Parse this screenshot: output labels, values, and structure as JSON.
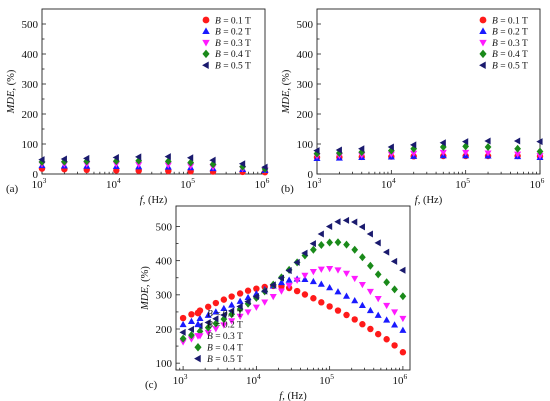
{
  "chart_data": [
    {
      "type": "scatter",
      "panel_label": "(a)",
      "xlabel_italic": "f",
      "xlabel_rest": ", (Hz)",
      "ylabel_italic": "MDE",
      "ylabel_rest": ", (%)",
      "xscale": "log",
      "xlim": [
        1000,
        1000000
      ],
      "ylim": [
        0,
        550
      ],
      "xticks": [
        {
          "base": "10",
          "exp": "3",
          "value": 1000
        },
        {
          "base": "10",
          "exp": "4",
          "value": 10000
        },
        {
          "base": "10",
          "exp": "5",
          "value": 100000
        },
        {
          "base": "10",
          "exp": "6",
          "value": 1000000
        }
      ],
      "yticks": [
        0,
        100,
        200,
        300,
        400,
        500
      ],
      "legend_position": "top-right",
      "series": [
        {
          "name_italic": "B",
          "name_rest": " = 0.1 T",
          "color": "#ff1a1a",
          "marker": "circle",
          "x": [
            1000,
            2000,
            4000,
            10000,
            20000,
            50000,
            100000,
            200000,
            500000,
            1000000
          ],
          "y": [
            18,
            16,
            14,
            12,
            11,
            10,
            9,
            8,
            7,
            6
          ]
        },
        {
          "name_italic": "B",
          "name_rest": " = 0.2 T",
          "color": "#1a1aff",
          "marker": "triangle-up",
          "x": [
            1000,
            2000,
            4000,
            10000,
            20000,
            50000,
            100000,
            200000,
            500000,
            1000000
          ],
          "y": [
            28,
            27,
            26,
            25,
            24,
            23,
            21,
            18,
            15,
            12
          ]
        },
        {
          "name_italic": "B",
          "name_rest": " = 0.3 T",
          "color": "#ff1aff",
          "marker": "triangle-down",
          "x": [
            1000,
            2000,
            4000,
            10000,
            20000,
            50000,
            100000,
            200000,
            500000,
            1000000
          ],
          "y": [
            33,
            33,
            33,
            33,
            32,
            30,
            27,
            23,
            18,
            14
          ]
        },
        {
          "name_italic": "B",
          "name_rest": " = 0.4 T",
          "color": "#1a8a1a",
          "marker": "diamond",
          "x": [
            1000,
            2000,
            4000,
            10000,
            20000,
            50000,
            100000,
            200000,
            500000,
            1000000
          ],
          "y": [
            40,
            41,
            42,
            43,
            44,
            42,
            38,
            32,
            24,
            17
          ]
        },
        {
          "name_italic": "B",
          "name_rest": " = 0.5 T",
          "color": "#1a1a6e",
          "marker": "triangle-left",
          "x": [
            1000,
            2000,
            4000,
            10000,
            20000,
            50000,
            100000,
            200000,
            500000,
            1000000
          ],
          "y": [
            48,
            50,
            52,
            55,
            57,
            58,
            54,
            46,
            34,
            23
          ]
        }
      ]
    },
    {
      "type": "scatter",
      "panel_label": "(b)",
      "xlabel_italic": "f",
      "xlabel_rest": ", (Hz)",
      "ylabel_italic": "MDE",
      "ylabel_rest": ", (%)",
      "xscale": "log",
      "xlim": [
        1000,
        1000000
      ],
      "ylim": [
        0,
        550
      ],
      "xticks": [
        {
          "base": "10",
          "exp": "3",
          "value": 1000
        },
        {
          "base": "10",
          "exp": "4",
          "value": 10000
        },
        {
          "base": "10",
          "exp": "5",
          "value": 100000
        },
        {
          "base": "10",
          "exp": "6",
          "value": 1000000
        }
      ],
      "yticks": [
        0,
        100,
        200,
        300,
        400,
        500
      ],
      "legend_position": "top-right",
      "series": [
        {
          "name_italic": "B",
          "name_rest": " = 0.1 T",
          "color": "#ff1a1a",
          "marker": "circle",
          "x": [
            1000,
            2000,
            4000,
            10000,
            20000,
            50000,
            100000,
            200000,
            500000,
            1000000
          ],
          "y": [
            55,
            56,
            57,
            58,
            59,
            60,
            60,
            60,
            60,
            59
          ]
        },
        {
          "name_italic": "B",
          "name_rest": " = 0.2 T",
          "color": "#1a1aff",
          "marker": "triangle-up",
          "x": [
            1000,
            2000,
            4000,
            10000,
            20000,
            50000,
            100000,
            200000,
            500000,
            1000000
          ],
          "y": [
            52,
            53,
            55,
            57,
            59,
            61,
            61,
            60,
            58,
            55
          ]
        },
        {
          "name_italic": "B",
          "name_rest": " = 0.3 T",
          "color": "#ff1aff",
          "marker": "triangle-down",
          "x": [
            1000,
            2000,
            4000,
            10000,
            20000,
            50000,
            100000,
            200000,
            500000,
            1000000
          ],
          "y": [
            60,
            61,
            63,
            66,
            69,
            72,
            72,
            70,
            66,
            61
          ]
        },
        {
          "name_italic": "B",
          "name_rest": " = 0.4 T",
          "color": "#1a8a1a",
          "marker": "diamond",
          "x": [
            1000,
            2000,
            4000,
            10000,
            20000,
            50000,
            100000,
            200000,
            500000,
            1000000
          ],
          "y": [
            68,
            70,
            73,
            78,
            84,
            90,
            92,
            90,
            84,
            75
          ]
        },
        {
          "name_italic": "B",
          "name_rest": " = 0.5 T",
          "color": "#1a1a6e",
          "marker": "triangle-left",
          "x": [
            1000,
            2000,
            4000,
            10000,
            20000,
            50000,
            100000,
            200000,
            500000,
            1000000
          ],
          "y": [
            78,
            80,
            84,
            90,
            97,
            104,
            108,
            110,
            110,
            108
          ]
        }
      ]
    },
    {
      "type": "scatter",
      "panel_label": "(c)",
      "xlabel_italic": "f",
      "xlabel_rest": ", (Hz)",
      "ylabel_italic": "MDE",
      "ylabel_rest": ", (%)",
      "xscale": "log",
      "xlim": [
        800,
        1250000
      ],
      "ylim": [
        80,
        560
      ],
      "xticks": [
        {
          "base": "10",
          "exp": "3",
          "value": 1000
        },
        {
          "base": "10",
          "exp": "4",
          "value": 10000
        },
        {
          "base": "10",
          "exp": "5",
          "value": 100000
        },
        {
          "base": "10",
          "exp": "6",
          "value": 1000000
        }
      ],
      "yticks": [
        100,
        200,
        300,
        400,
        500
      ],
      "legend_position": "bottom-left",
      "series": [
        {
          "name_italic": "B",
          "name_rest": " = 0.1 T",
          "color": "#ff1a1a",
          "marker": "circle",
          "x": [
            1000,
            1300,
            1700,
            2200,
            2800,
            3600,
            4600,
            6000,
            7700,
            10000,
            13000,
            17000,
            22000,
            28000,
            36000,
            46000,
            60000,
            77000,
            100000,
            130000,
            170000,
            220000,
            280000,
            360000,
            460000,
            600000,
            770000,
            1000000
          ],
          "y": [
            232,
            243,
            254,
            265,
            276,
            286,
            295,
            304,
            312,
            318,
            323,
            326,
            325,
            320,
            311,
            301,
            290,
            278,
            266,
            254,
            241,
            228,
            214,
            200,
            185,
            170,
            152,
            132
          ]
        },
        {
          "name_italic": "B",
          "name_rest": " = 0.2 T",
          "color": "#1a1aff",
          "marker": "triangle-up",
          "x": [
            1000,
            1300,
            1700,
            2200,
            2800,
            3600,
            4600,
            6000,
            7700,
            10000,
            13000,
            17000,
            22000,
            28000,
            36000,
            46000,
            60000,
            77000,
            100000,
            130000,
            170000,
            220000,
            280000,
            360000,
            460000,
            600000,
            770000,
            1000000
          ],
          "y": [
            213,
            222,
            231,
            240,
            250,
            260,
            270,
            281,
            292,
            303,
            315,
            326,
            336,
            343,
            346,
            345,
            339,
            331,
            321,
            309,
            296,
            283,
            269,
            254,
            240,
            226,
            212,
            196
          ]
        },
        {
          "name_italic": "B",
          "name_rest": " = 0.3 T",
          "color": "#ff1aff",
          "marker": "triangle-down",
          "x": [
            1000,
            1300,
            1700,
            2200,
            2800,
            3600,
            4600,
            6000,
            7700,
            10000,
            13000,
            17000,
            22000,
            28000,
            36000,
            46000,
            60000,
            77000,
            100000,
            130000,
            170000,
            220000,
            280000,
            360000,
            460000,
            600000,
            770000,
            1000000
          ],
          "y": [
            162,
            171,
            180,
            190,
            201,
            212,
            224,
            237,
            250,
            264,
            279,
            295,
            311,
            327,
            343,
            357,
            368,
            375,
            377,
            373,
            363,
            348,
            330,
            310,
            289,
            269,
            250,
            231
          ]
        },
        {
          "name_italic": "B",
          "name_rest": " = 0.4 T",
          "color": "#1a8a1a",
          "marker": "diamond",
          "x": [
            1000,
            1300,
            1700,
            2200,
            2800,
            3600,
            4600,
            6000,
            7700,
            10000,
            13000,
            17000,
            22000,
            28000,
            36000,
            46000,
            60000,
            77000,
            100000,
            130000,
            170000,
            220000,
            280000,
            360000,
            460000,
            600000,
            770000,
            1000000
          ],
          "y": [
            172,
            182,
            193,
            204,
            216,
            229,
            243,
            258,
            274,
            291,
            310,
            330,
            351,
            373,
            395,
            415,
            432,
            446,
            453,
            454,
            447,
            432,
            410,
            385,
            360,
            337,
            316,
            296
          ]
        },
        {
          "name_italic": "B",
          "name_rest": " = 0.5 T",
          "color": "#1a1a6e",
          "marker": "triangle-left",
          "x": [
            1000,
            1300,
            1700,
            2200,
            2800,
            3600,
            4600,
            6000,
            7700,
            10000,
            13000,
            17000,
            22000,
            28000,
            36000,
            46000,
            60000,
            77000,
            100000,
            130000,
            170000,
            220000,
            280000,
            360000,
            460000,
            600000,
            770000,
            1000000
          ],
          "y": [
            190,
            199,
            209,
            219,
            230,
            241,
            253,
            266,
            280,
            295,
            311,
            329,
            349,
            371,
            395,
            422,
            450,
            478,
            500,
            514,
            518,
            513,
            499,
            478,
            452,
            425,
            398,
            372
          ]
        }
      ]
    }
  ]
}
